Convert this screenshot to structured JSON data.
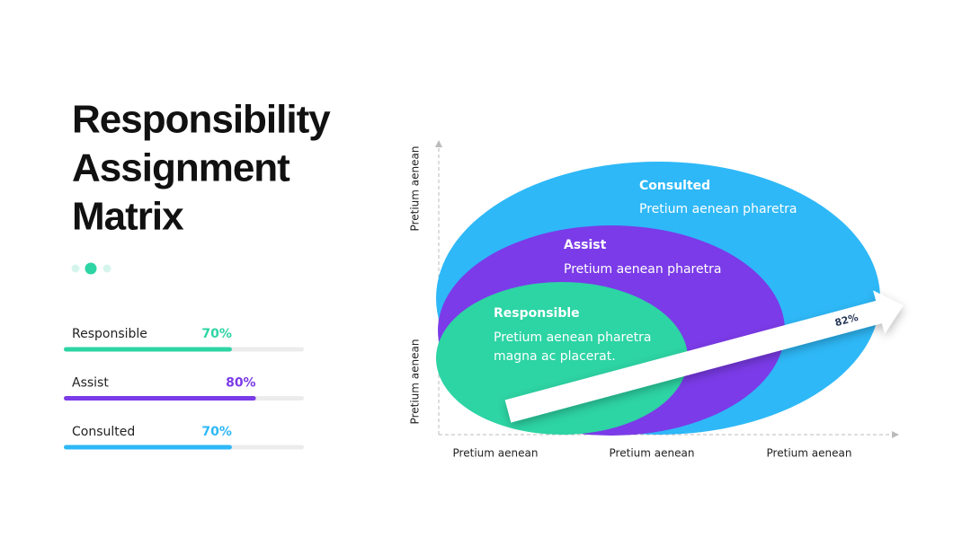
{
  "title": [
    "Responsibility",
    "Assignment",
    "Matrix"
  ],
  "progress": [
    {
      "name": "Responsible",
      "value": 70,
      "value_label": "70%",
      "color": "#2dd4a4"
    },
    {
      "name": "Assist",
      "value": 80,
      "value_label": "80%",
      "color": "#7b3be8"
    },
    {
      "name": "Consulted",
      "value": 70,
      "value_label": "70%",
      "color": "#2eb8f7"
    }
  ],
  "diagram": {
    "y_axis_labels": [
      "Pretium aenean",
      "Pretium aenean"
    ],
    "x_axis_labels": [
      "Pretium aenean",
      "Pretium aenean",
      "Pretium aenean"
    ],
    "ellipses": [
      {
        "title": "Consulted",
        "lines": [
          "Pretium aenean pharetra"
        ]
      },
      {
        "title": "Assist",
        "lines": [
          "Pretium aenean pharetra"
        ]
      },
      {
        "title": "Responsible",
        "lines": [
          "Pretium aenean pharetra",
          "magna ac placerat."
        ]
      }
    ],
    "arrow": {
      "value": 82,
      "label": "82%"
    }
  }
}
